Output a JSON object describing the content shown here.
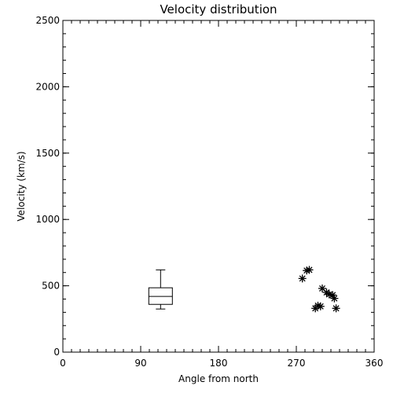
{
  "chart_data": {
    "type": "scatter",
    "title": "Velocity distribution",
    "xlabel": "Angle from north",
    "ylabel": "Velocity (km/s)",
    "xlim": [
      0,
      360
    ],
    "ylim": [
      0,
      2500
    ],
    "xticks": [
      0,
      90,
      180,
      270,
      360
    ],
    "yticks": [
      0,
      500,
      1000,
      1500,
      2000,
      2500
    ],
    "grid": false,
    "boxplot": {
      "x": 113,
      "whisker_low": 325,
      "q1": 360,
      "median": 420,
      "q3": 485,
      "whisker_high": 620
    },
    "points": [
      {
        "x": 277,
        "y": 555
      },
      {
        "x": 282,
        "y": 615
      },
      {
        "x": 285,
        "y": 620
      },
      {
        "x": 292,
        "y": 330
      },
      {
        "x": 295,
        "y": 350
      },
      {
        "x": 298,
        "y": 345
      },
      {
        "x": 300,
        "y": 480
      },
      {
        "x": 305,
        "y": 450
      },
      {
        "x": 308,
        "y": 435
      },
      {
        "x": 312,
        "y": 430
      },
      {
        "x": 314,
        "y": 405
      },
      {
        "x": 316,
        "y": 330
      }
    ]
  }
}
